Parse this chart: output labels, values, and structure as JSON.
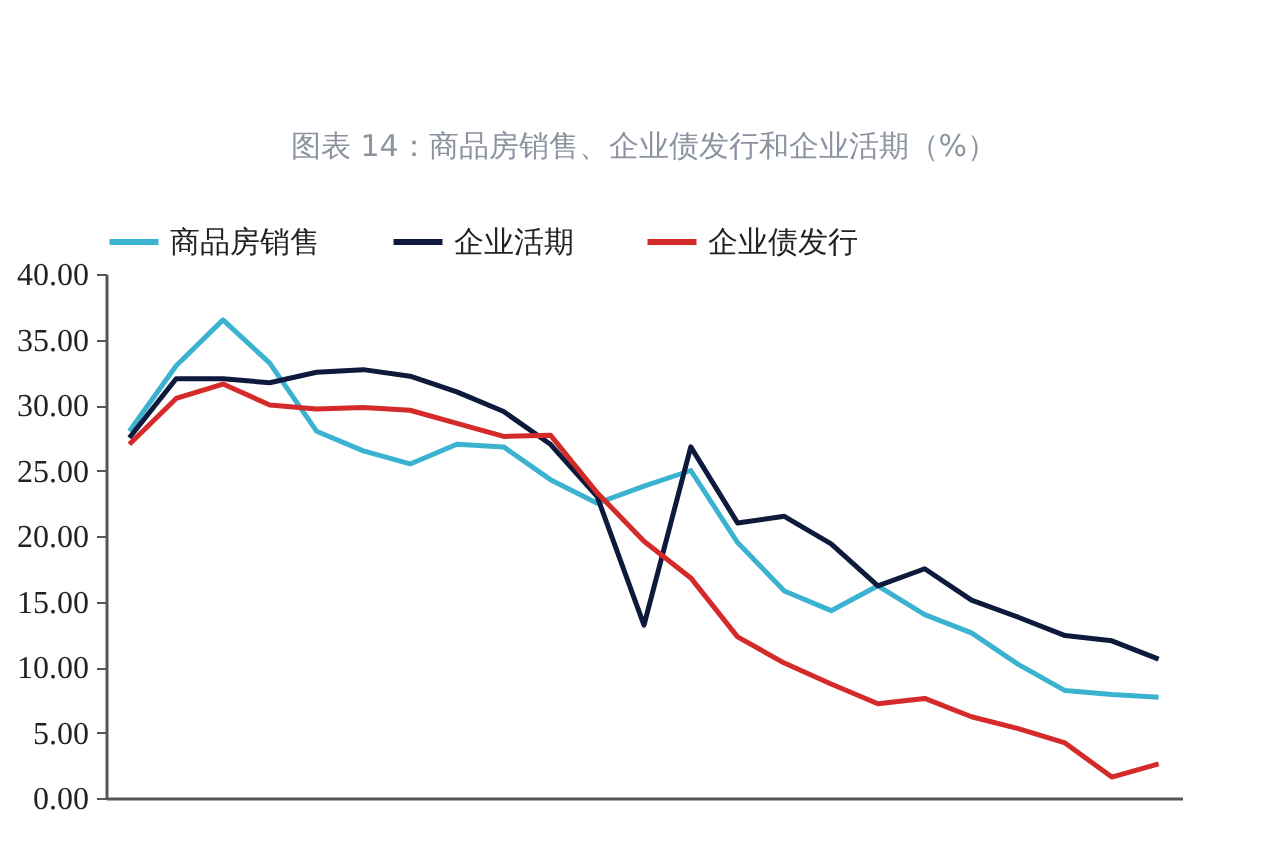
{
  "chart_data": {
    "type": "line",
    "title": "图表 14：商品房销售、企业债发行和企业活期（%）",
    "categories": [
      null,
      null,
      null,
      null,
      null,
      null,
      null,
      null,
      null,
      null,
      null,
      null,
      null,
      null,
      null,
      null,
      null,
      null,
      null,
      null,
      null,
      null,
      null
    ],
    "series": [
      {
        "name": "商品房销售",
        "color": "#3bb3d0",
        "values": [
          28,
          33,
          36.5,
          33.2,
          28,
          26.5,
          25.5,
          27,
          26.8,
          24.3,
          22.5,
          23.8,
          25,
          19.5,
          15.8,
          14.3,
          16.2,
          14,
          12.6,
          10.2,
          8.2,
          7.9,
          7.7
        ]
      },
      {
        "name": "企业活期",
        "color": "#0d1a3c",
        "values": [
          27.5,
          32,
          32,
          31.7,
          32.5,
          32.7,
          32.2,
          31,
          29.5,
          27,
          23,
          13.2,
          26.8,
          21,
          21.5,
          19.4,
          16.2,
          17.5,
          15.1,
          13.8,
          12.4,
          12,
          10.6
        ]
      },
      {
        "name": "企业债发行",
        "color": "#d42a2a",
        "values": [
          27,
          30.5,
          31.6,
          30,
          29.7,
          29.8,
          29.6,
          28.6,
          27.6,
          27.7,
          23.3,
          19.6,
          16.8,
          12.3,
          10.3,
          8.7,
          7.2,
          7.6,
          6.2,
          5.3,
          4.2,
          1.6,
          2.6
        ]
      }
    ],
    "ylim": [
      0,
      40
    ],
    "yticks": [
      {
        "value": 0,
        "label": "0.00"
      },
      {
        "value": 5,
        "label": "5.00"
      },
      {
        "value": 10,
        "label": "10.00"
      },
      {
        "value": 15,
        "label": "15.00"
      },
      {
        "value": 20,
        "label": "20.00"
      },
      {
        "value": 25,
        "label": "25.00"
      },
      {
        "value": 30,
        "label": "30.00"
      },
      {
        "value": 35,
        "label": "35.00"
      },
      {
        "value": 40,
        "label": "40.00"
      }
    ],
    "grid": false,
    "legend": "top",
    "tick_labels": "y",
    "marker": "none",
    "line_style": "solid"
  }
}
